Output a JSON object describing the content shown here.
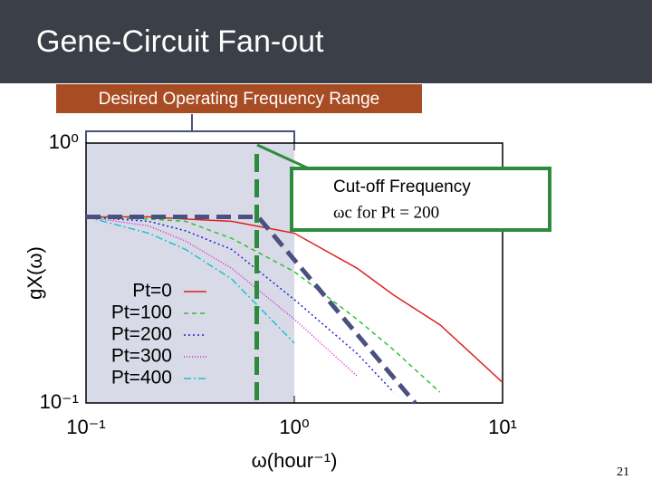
{
  "chart_data": {
    "type": "line",
    "title": "Gene-Circuit Fan-out",
    "range_label": "Desired Operating Frequency Range",
    "callout_line1": "Cut-off Frequency",
    "callout_line2": "ωc  for  Pt = 200",
    "xlabel": "ω(hour⁻¹)",
    "ylabel": "gX(ω)",
    "page_number": "21",
    "log_x": true,
    "log_y": true,
    "xlim": [
      0.1,
      10
    ],
    "ylim": [
      0.1,
      1
    ],
    "xticks": [
      {
        "value": 0.1,
        "label": "10⁻¹"
      },
      {
        "value": 1,
        "label": "10⁰"
      },
      {
        "value": 10,
        "label": "10¹"
      }
    ],
    "yticks": [
      {
        "value": 0.1,
        "label": "10⁻¹"
      },
      {
        "value": 1,
        "label": "10⁰"
      }
    ],
    "shaded_range": [
      0.1,
      1
    ],
    "cutoff_x": 0.66,
    "x": [
      0.1,
      0.2,
      0.3,
      0.5,
      1,
      2,
      3,
      5,
      10
    ],
    "series": [
      {
        "name": "Pt=0",
        "color": "#e02020",
        "dash": "",
        "values": [
          0.52,
          0.52,
          0.51,
          0.5,
          0.45,
          0.33,
          0.26,
          0.2,
          0.12
        ]
      },
      {
        "name": "Pt=100",
        "color": "#30c030",
        "dash": "5,4",
        "values": [
          0.52,
          0.51,
          0.5,
          0.43,
          0.32,
          0.21,
          0.16,
          0.11,
          null
        ]
      },
      {
        "name": "Pt=200",
        "color": "#2020d0",
        "dash": "2,3",
        "values": [
          0.52,
          0.5,
          0.46,
          0.39,
          0.25,
          0.155,
          0.11,
          null,
          null
        ]
      },
      {
        "name": "Pt=300",
        "color": "#d020d0",
        "dash": "1,2",
        "values": [
          0.52,
          0.48,
          0.42,
          0.33,
          0.21,
          0.127,
          null,
          null,
          null
        ]
      },
      {
        "name": "Pt=400",
        "color": "#20c0d0",
        "dash": "8,3,2,3",
        "values": [
          0.52,
          0.45,
          0.39,
          0.3,
          0.17,
          null,
          null,
          null,
          null
        ]
      },
      {
        "color": "#4a5080",
        "dash": "16,8",
        "width": 5,
        "x": [
          0.1,
          0.67,
          3.8
        ],
        "values": [
          0.52,
          0.52,
          0.1
        ]
      }
    ]
  }
}
